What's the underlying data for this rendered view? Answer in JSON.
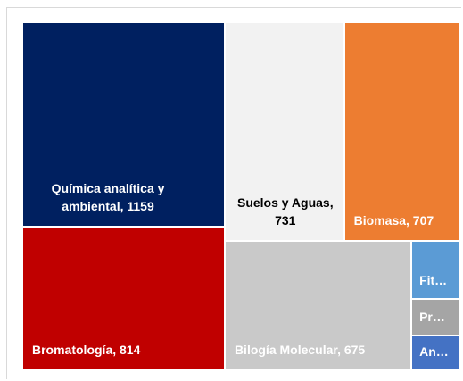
{
  "chart_data": {
    "type": "treemap",
    "categories": [
      "Química analítica y ambiental, 1159",
      "Bromatología, 814",
      "Suelos y Aguas, 731",
      "Biomasa, 707",
      "Bilogía Molecular, 675",
      "Fit…",
      "Pr…",
      "An…"
    ],
    "values": [
      1159,
      814,
      731,
      707,
      675,
      78,
      49,
      47
    ],
    "colors": [
      "#002060",
      "#c00000",
      "#f2f2f2",
      "#ed7d31",
      "#c9c9c9",
      "#5b9bd5",
      "#a5a5a5",
      "#4472c4"
    ],
    "label_colors": [
      "#ffffff",
      "#ffffff",
      "#000000",
      "#ffffff",
      "#ffffff",
      "#ffffff",
      "#ffffff",
      "#ffffff"
    ]
  }
}
